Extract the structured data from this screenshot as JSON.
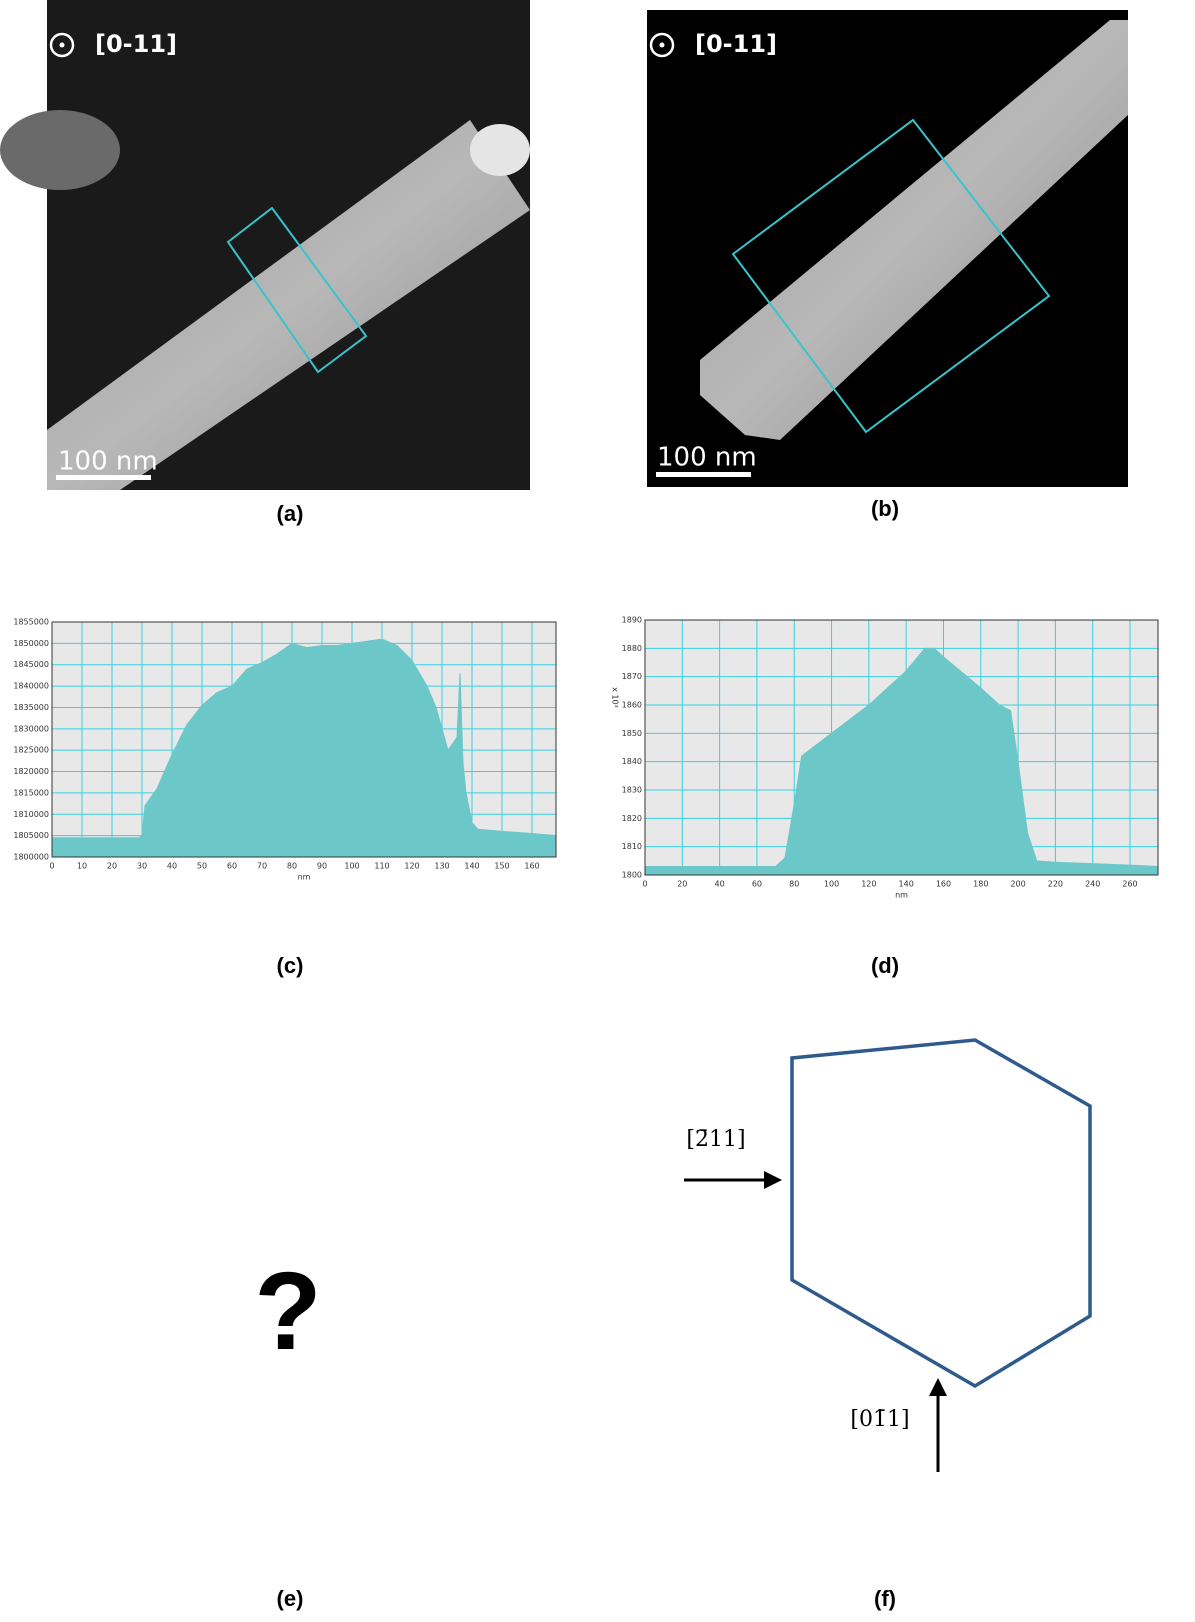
{
  "images": [
    {
      "direction": "[0-11]",
      "scale_bar": "100 nm",
      "caption": "(a)"
    },
    {
      "direction": "[0-11]",
      "scale_bar": "100 nm",
      "caption": "(b)"
    }
  ],
  "chart_data": [
    {
      "type": "area",
      "caption": "(c)",
      "x_label": "nm",
      "color": "#6cc8c8",
      "grid": true,
      "x": [
        0,
        29,
        30,
        31,
        35,
        40,
        45,
        50,
        55,
        60,
        65,
        70,
        75,
        80,
        85,
        90,
        95,
        100,
        105,
        110,
        115,
        120,
        125,
        128,
        132,
        135,
        136,
        137,
        138,
        140,
        142,
        150,
        160,
        168
      ],
      "values": [
        1804500,
        1804500,
        1805000,
        1812000,
        1816000,
        1824000,
        1831000,
        1835500,
        1838500,
        1840000,
        1844000,
        1845500,
        1847500,
        1850000,
        1849000,
        1849500,
        1849500,
        1850000,
        1850500,
        1851000,
        1849500,
        1846000,
        1840000,
        1835000,
        1825000,
        1828000,
        1843000,
        1822000,
        1815000,
        1808000,
        1806500,
        1806000,
        1805500,
        1805000
      ],
      "xlim": [
        0,
        168
      ],
      "xticks": [
        0,
        10,
        20,
        30,
        40,
        50,
        60,
        70,
        80,
        90,
        100,
        110,
        120,
        130,
        140,
        150,
        160
      ],
      "ylim": [
        1800000,
        1855000
      ],
      "yticks": [
        1800000,
        1805000,
        1810000,
        1815000,
        1820000,
        1825000,
        1830000,
        1835000,
        1840000,
        1845000,
        1850000,
        1855000
      ]
    },
    {
      "type": "area",
      "caption": "(d)",
      "x_label": "nm",
      "y_label": "x 10³",
      "color": "#6cc8c8",
      "grid": true,
      "x": [
        0,
        70,
        75,
        80,
        84,
        90,
        100,
        120,
        140,
        150,
        155,
        160,
        180,
        190,
        196,
        200,
        205,
        210,
        220,
        240,
        260,
        275
      ],
      "values": [
        1803,
        1803,
        1806,
        1825,
        1842,
        1845,
        1850,
        1860,
        1872,
        1880,
        1880,
        1877,
        1866,
        1860,
        1858,
        1840,
        1815,
        1805,
        1804.5,
        1804,
        1803.5,
        1803
      ],
      "xlim": [
        0,
        275
      ],
      "xticks": [
        0,
        20,
        40,
        60,
        80,
        100,
        120,
        140,
        160,
        180,
        200,
        220,
        240,
        260
      ],
      "ylim": [
        1800,
        1890
      ],
      "yticks": [
        1800,
        1810,
        1820,
        1830,
        1840,
        1850,
        1860,
        1870,
        1880,
        1890
      ]
    }
  ],
  "panel_e": {
    "symbol": "?",
    "caption": "(e)"
  },
  "panel_f": {
    "arrow_left": "[2̄11]",
    "arrow_bottom": "[01̄1]",
    "caption": "(f)"
  }
}
